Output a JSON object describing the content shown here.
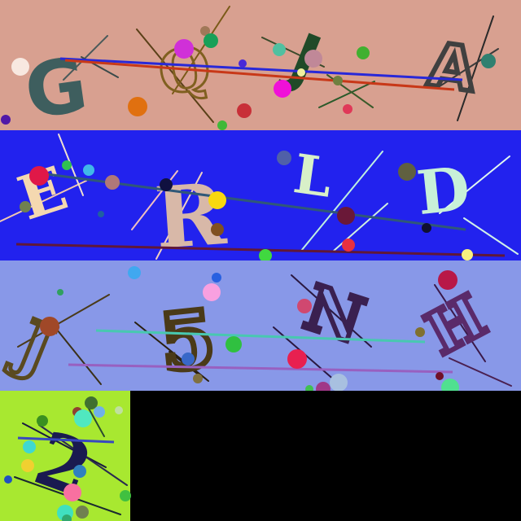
{
  "captcha": {
    "rows": [
      {
        "name": "row-1",
        "background": "#d8a090",
        "characters": [
          {
            "char": "G",
            "color": "#3e5e5e",
            "name": "char-G"
          },
          {
            "char": "Q",
            "color": "#806020",
            "name": "char-Q"
          },
          {
            "char": "J",
            "color": "#204a28",
            "name": "char-J"
          },
          {
            "char": "A",
            "color": "#404040",
            "name": "char-A"
          }
        ]
      },
      {
        "name": "row-2",
        "background": "#2222ee",
        "characters": [
          {
            "char": "E",
            "color": "#f4d8b0",
            "name": "char-E"
          },
          {
            "char": "R",
            "color": "#d8b8a8",
            "name": "char-R"
          },
          {
            "char": "L",
            "color": "#d8f0c8",
            "name": "char-L"
          },
          {
            "char": "D",
            "color": "#c8f0d8",
            "name": "char-D"
          }
        ]
      },
      {
        "name": "row-3",
        "background": "#8898e8",
        "characters": [
          {
            "char": "J",
            "color": "#5a4a20",
            "name": "char-J-2"
          },
          {
            "char": "5",
            "color": "#4a3a18",
            "name": "char-5"
          },
          {
            "char": "N",
            "color": "#3a2050",
            "name": "char-N"
          },
          {
            "char": "H",
            "color": "#5a2a6a",
            "name": "char-H"
          }
        ]
      },
      {
        "name": "row-4",
        "background": "#a8e830",
        "characters": [
          {
            "char": "2",
            "color": "#1a1a50",
            "name": "char-2"
          }
        ]
      }
    ]
  }
}
